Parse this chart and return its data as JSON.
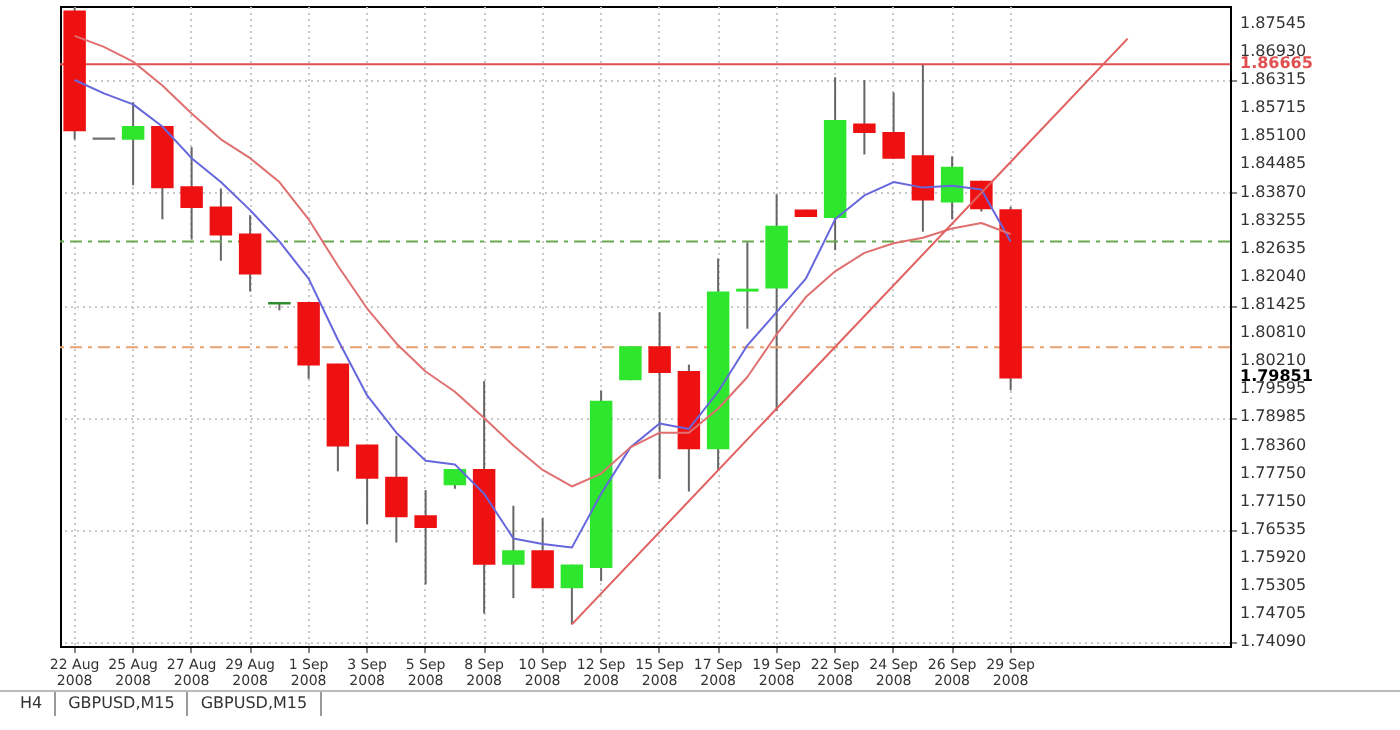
{
  "chart_data": {
    "type": "candlestick",
    "categories": [
      "22 Aug 2008",
      null,
      "25 Aug 2008",
      null,
      "27 Aug 2008",
      null,
      "29 Aug 2008",
      null,
      "1 Sep 2008",
      null,
      "3 Sep 2008",
      null,
      "5 Sep 2008",
      null,
      "8 Sep 2008",
      null,
      "10 Sep 2008",
      null,
      "12 Sep 2008",
      null,
      "15 Sep 2008",
      null,
      "17 Sep 2008",
      null,
      "19 Sep 2008",
      null,
      "22 Sep 2008",
      null,
      "24 Sep 2008",
      null,
      "26 Sep 2008",
      null,
      "29 Sep 2008",
      null,
      null,
      null,
      null,
      null,
      null,
      null
    ],
    "ohlc": [
      [
        1.8781,
        1.879,
        1.8503,
        1.8523
      ],
      [
        1.8504,
        1.8506,
        1.8503,
        1.8505
      ],
      [
        1.8504,
        1.8584,
        1.8403,
        1.853
      ],
      [
        1.853,
        1.8532,
        1.8329,
        1.8399
      ],
      [
        1.8399,
        1.8486,
        1.8285,
        1.8356
      ],
      [
        1.8355,
        1.8396,
        1.8239,
        1.8296
      ],
      [
        1.8296,
        1.8338,
        1.8172,
        1.8211
      ],
      [
        1.8146,
        1.8148,
        1.8131,
        1.8147
      ],
      [
        1.8147,
        1.8149,
        1.7982,
        1.8013
      ],
      [
        1.8013,
        1.8015,
        1.7781,
        1.7837
      ],
      [
        1.7837,
        1.7839,
        1.7666,
        1.7767
      ],
      [
        1.7767,
        1.7858,
        1.7626,
        1.7683
      ],
      [
        1.7683,
        1.774,
        1.7535,
        1.766
      ],
      [
        1.7753,
        1.7786,
        1.7743,
        1.7784
      ],
      [
        1.7784,
        1.7977,
        1.7472,
        1.758
      ],
      [
        1.758,
        1.7706,
        1.7505,
        1.7607
      ],
      [
        1.7607,
        1.7679,
        1.7527,
        1.7529
      ],
      [
        1.7529,
        1.7578,
        1.7448,
        1.7576
      ],
      [
        1.7573,
        1.7957,
        1.7542,
        1.7932
      ],
      [
        1.7981,
        1.8053,
        1.7979,
        1.8051
      ],
      [
        1.8051,
        1.8127,
        1.7764,
        1.7997
      ],
      [
        1.7997,
        1.8013,
        1.7737,
        1.7831
      ],
      [
        1.7831,
        1.8244,
        1.7784,
        1.817
      ],
      [
        1.8174,
        1.8279,
        1.8091,
        1.8176
      ],
      [
        1.8181,
        1.8383,
        1.7912,
        1.8313
      ],
      [
        1.8348,
        1.835,
        1.8334,
        1.8336
      ],
      [
        1.8334,
        1.8638,
        1.8262,
        1.8543
      ],
      [
        1.8535,
        1.8632,
        1.847,
        1.8519
      ],
      [
        1.8517,
        1.8605,
        1.8461,
        1.8463
      ],
      [
        1.8466,
        1.8665,
        1.8302,
        1.8372
      ],
      [
        1.8368,
        1.8466,
        1.8329,
        1.8441
      ],
      [
        1.8411,
        1.8413,
        1.8346,
        1.8353
      ],
      [
        1.8349,
        1.8356,
        1.7957,
        1.79851
      ],
      null,
      null,
      null,
      null,
      null,
      null,
      null
    ],
    "colors": [
      "#ee1111",
      "#707070",
      "#2ee62e",
      "#ee1111",
      "#ee1111",
      "#ee1111",
      "#ee1111",
      "#2e8b2e",
      "#ee1111",
      "#ee1111",
      "#ee1111",
      "#ee1111",
      "#ee1111",
      "#2ee62e",
      "#ee1111",
      "#2ee62e",
      "#ee1111",
      "#2ee62e",
      "#2ee62e",
      "#2ee62e",
      "#ee1111",
      "#ee1111",
      "#2ee62e",
      "#2ee62e",
      "#2ee62e",
      "#ee1111",
      "#2ee62e",
      "#ee1111",
      "#ee1111",
      "#ee1111",
      "#2ee62e",
      "#ee1111",
      "#ee1111",
      null,
      null,
      null,
      null,
      null,
      null,
      null
    ],
    "series": [
      {
        "type": "line",
        "color": "#6666dd",
        "values": [
          1.8632,
          1.8603,
          1.8579,
          1.8531,
          1.8462,
          1.841,
          1.8349,
          1.8281,
          1.82,
          1.8067,
          1.7946,
          1.7865,
          1.7804,
          1.7796,
          1.7732,
          1.7635,
          1.7623,
          1.7615,
          1.7732,
          1.7833,
          1.7885,
          1.7873,
          1.7954,
          1.8055,
          1.8127,
          1.82,
          1.8329,
          1.8381,
          1.841,
          1.8398,
          1.8402,
          1.8394,
          1.8281,
          null,
          null,
          null,
          null,
          null,
          null,
          null
        ]
      },
      {
        "type": "line",
        "color": "#e07070",
        "values": [
          1.8728,
          1.8704,
          1.8672,
          1.862,
          1.8559,
          1.8503,
          1.8462,
          1.841,
          1.8329,
          1.8228,
          1.8135,
          1.8059,
          1.7998,
          1.7954,
          1.7897,
          1.7837,
          1.7784,
          1.7748,
          1.7776,
          1.7833,
          1.7865,
          1.7865,
          1.7917,
          1.7986,
          1.8079,
          1.816,
          1.8216,
          1.8256,
          1.8277,
          1.8289,
          1.8309,
          1.8321,
          1.8297,
          null,
          null,
          null,
          null,
          null,
          null,
          null
        ]
      },
      {
        "type": "line",
        "color": "#e06060",
        "values": [
          null,
          null,
          null,
          null,
          null,
          null,
          null,
          null,
          null,
          null,
          null,
          null,
          null,
          null,
          null,
          null,
          null,
          1.7448,
          null,
          null,
          null,
          null,
          null,
          null,
          null,
          null,
          null,
          null,
          null,
          null,
          null,
          null,
          null,
          null,
          null,
          null,
          1.8722,
          null,
          null,
          null
        ]
      }
    ],
    "ylim": [
      1.7401,
      1.8793
    ],
    "yticks": [
      {
        "value": 1.87545,
        "label": "1.87545"
      },
      {
        "value": 1.8693,
        "label": "1.86930"
      },
      {
        "value": 1.86315,
        "label": "1.86315"
      },
      {
        "value": 1.85715,
        "label": "1.85715"
      },
      {
        "value": 1.851,
        "label": "1.85100"
      },
      {
        "value": 1.84485,
        "label": "1.84485"
      },
      {
        "value": 1.8387,
        "label": "1.83870"
      },
      {
        "value": 1.83255,
        "label": "1.83255"
      },
      {
        "value": 1.82635,
        "label": "1.82635"
      },
      {
        "value": 1.8204,
        "label": "1.82040"
      },
      {
        "value": 1.81425,
        "label": "1.81425"
      },
      {
        "value": 1.8081,
        "label": "1.80810"
      },
      {
        "value": 1.8021,
        "label": "1.80210"
      },
      {
        "value": 1.79595,
        "label": "1.79595"
      },
      {
        "value": 1.78985,
        "label": "1.78985"
      },
      {
        "value": 1.7836,
        "label": "1.78360"
      },
      {
        "value": 1.7775,
        "label": "1.77750"
      },
      {
        "value": 1.7715,
        "label": "1.77150"
      },
      {
        "value": 1.76535,
        "label": "1.76535"
      },
      {
        "value": 1.7592,
        "label": "1.75920"
      },
      {
        "value": 1.75305,
        "label": "1.75305"
      },
      {
        "value": 1.74705,
        "label": "1.74705"
      },
      {
        "value": 1.7409,
        "label": "1.74090"
      }
    ],
    "ref_lines": [
      {
        "axis": "y",
        "value": 1.86665,
        "label": "1.86665",
        "color": "#e05050"
      },
      {
        "axis": "y",
        "value": 1.8281,
        "color": "#6aa84f",
        "line_style": "dashed"
      },
      {
        "axis": "y",
        "value": 1.8051,
        "color": "#e8a070",
        "line_style": "dashed"
      }
    ],
    "annotations": [
      "1.79851",
      "H4",
      "GBPUSD,M15",
      "GBPUSD,M15"
    ],
    "grid": true
  }
}
